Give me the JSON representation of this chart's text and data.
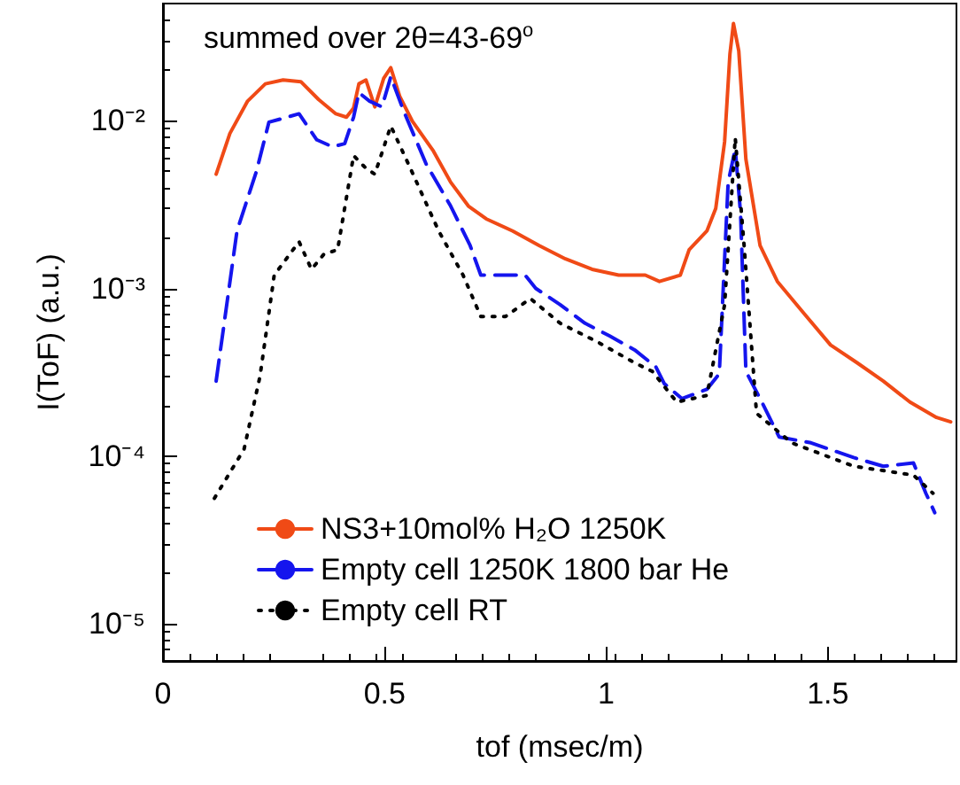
{
  "chart_data": {
    "type": "line",
    "xlabel": "tof (msec/m)",
    "ylabel": "I(ToF) (a.u.)",
    "annotations": [
      "summed over 2θ=43-69$^{o}$"
    ],
    "xlim": [
      0,
      1.79
    ],
    "xticks": [
      0,
      0.5,
      1,
      1.5
    ],
    "ylim": [
      6e-06,
      0.05
    ],
    "yticks": [
      {
        "value": 0.01,
        "label": "10⁻²"
      },
      {
        "value": 0.001,
        "label": "10⁻³"
      },
      {
        "value": 0.0001,
        "label": "10⁻⁴"
      },
      {
        "value": 1e-05,
        "label": "10⁻⁵"
      }
    ],
    "log": "y",
    "grid": false,
    "legend": "bottom left",
    "marker": "none",
    "series": [
      {
        "name": "NS3+10mol% H₂O 1250K",
        "color": "#f04a16",
        "line_style": "solid",
        "x": [
          0.12,
          0.151,
          0.191,
          0.231,
          0.271,
          0.311,
          0.351,
          0.39,
          0.414,
          0.43,
          0.442,
          0.458,
          0.478,
          0.498,
          0.514,
          0.534,
          0.562,
          0.61,
          0.649,
          0.689,
          0.729,
          0.789,
          0.849,
          0.908,
          0.968,
          1.028,
          1.088,
          1.12,
          1.167,
          1.187,
          1.227,
          1.247,
          1.267,
          1.279,
          1.287,
          1.299,
          1.315,
          1.347,
          1.386,
          1.446,
          1.506,
          1.566,
          1.625,
          1.685,
          1.745,
          1.777
        ],
        "values": [
          0.0048,
          0.0084,
          0.0131,
          0.0166,
          0.0175,
          0.0171,
          0.0134,
          0.011,
          0.0105,
          0.0119,
          0.0166,
          0.0175,
          0.0121,
          0.0179,
          0.0207,
          0.014,
          0.01,
          0.0066,
          0.0043,
          0.0031,
          0.0026,
          0.0022,
          0.0018,
          0.0015,
          0.0013,
          0.0012,
          0.0012,
          0.0011,
          0.0012,
          0.0017,
          0.0022,
          0.003,
          0.0075,
          0.025,
          0.038,
          0.026,
          0.0059,
          0.0018,
          0.0011,
          0.00071,
          0.00046,
          0.00036,
          0.00028,
          0.00021,
          0.00017,
          0.00016
        ]
      },
      {
        "name": "Empty cell 1250K 1800 bar He",
        "color": "#1515ee",
        "line_style": "dashed",
        "x": [
          0.12,
          0.167,
          0.211,
          0.239,
          0.307,
          0.347,
          0.382,
          0.41,
          0.43,
          0.442,
          0.466,
          0.494,
          0.514,
          0.542,
          0.594,
          0.649,
          0.693,
          0.717,
          0.817,
          0.841,
          0.896,
          0.952,
          1.008,
          1.064,
          1.112,
          1.131,
          1.171,
          1.227,
          1.255,
          1.275,
          1.291,
          1.303,
          1.315,
          1.351,
          1.39,
          1.462,
          1.558,
          1.625,
          1.693,
          1.721,
          1.741
        ],
        "values": [
          0.00028,
          0.0022,
          0.005,
          0.0098,
          0.011,
          0.0077,
          0.007,
          0.0073,
          0.0105,
          0.0147,
          0.0131,
          0.0121,
          0.0183,
          0.0116,
          0.0055,
          0.0031,
          0.0018,
          0.0012,
          0.0012,
          0.001,
          0.0008,
          0.00062,
          0.00052,
          0.00043,
          0.00034,
          0.00027,
          0.00022,
          0.00025,
          0.00031,
          0.0043,
          0.0068,
          0.0028,
          0.00032,
          0.00021,
          0.00013,
          0.00012,
          9.8e-05,
          8.7e-05,
          9.1e-05,
          6e-05,
          4.6e-05
        ]
      },
      {
        "name": "Empty cell RT",
        "color": "#000000",
        "line_style": "dotted",
        "x": [
          0.116,
          0.183,
          0.219,
          0.251,
          0.307,
          0.335,
          0.363,
          0.394,
          0.43,
          0.458,
          0.478,
          0.514,
          0.554,
          0.622,
          0.677,
          0.717,
          0.773,
          0.829,
          0.896,
          0.98,
          1.064,
          1.104,
          1.159,
          1.227,
          1.267,
          1.291,
          1.311,
          1.339,
          1.418,
          1.558,
          1.693,
          1.737
        ],
        "values": [
          5.6e-05,
          0.00011,
          0.0003,
          0.0012,
          0.0019,
          0.0013,
          0.0016,
          0.0017,
          0.0062,
          0.0052,
          0.0048,
          0.0093,
          0.0055,
          0.0022,
          0.0012,
          0.00068,
          0.00068,
          0.00087,
          0.00062,
          0.00048,
          0.00036,
          0.00032,
          0.00021,
          0.00023,
          0.0008,
          0.0079,
          0.0018,
          0.00018,
          0.00012,
          8.7e-05,
          7.7e-05,
          6e-05
        ]
      }
    ]
  }
}
